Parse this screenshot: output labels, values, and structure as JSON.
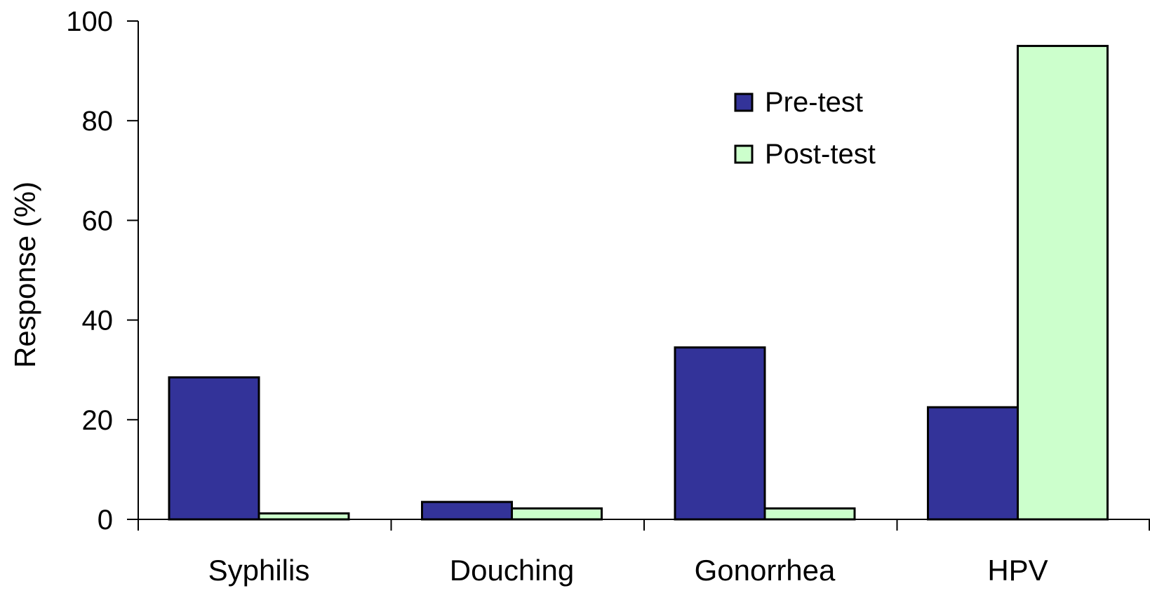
{
  "chart_data": {
    "type": "bar",
    "title": "",
    "xlabel": "",
    "ylabel": "Response (%)",
    "ylim": [
      0,
      100
    ],
    "yticks": [
      0,
      20,
      40,
      60,
      80,
      100
    ],
    "grid": false,
    "legend_position": "top-right",
    "categories": [
      "Syphilis",
      "Douching",
      "Gonorrhea",
      "HPV"
    ],
    "series": [
      {
        "name": "Pre-test",
        "values": [
          28.5,
          3.5,
          34.5,
          22.5
        ],
        "color": "#333399"
      },
      {
        "name": "Post-test",
        "values": [
          1.2,
          2.2,
          2.2,
          95.0
        ],
        "color": "#CCFFCC"
      }
    ]
  }
}
